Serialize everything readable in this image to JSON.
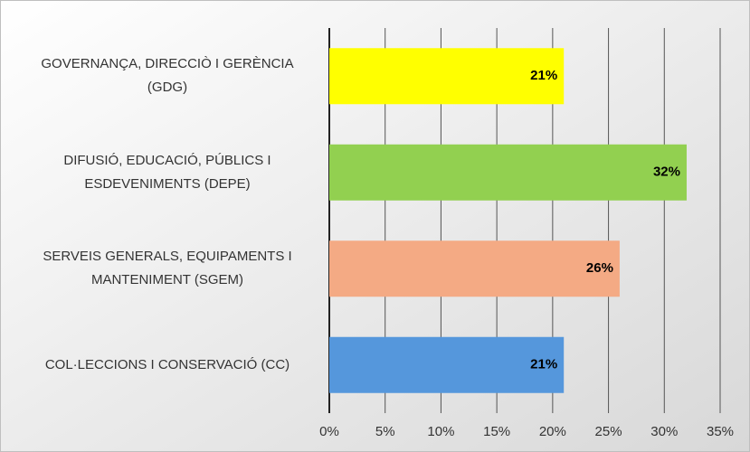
{
  "chart_data": {
    "type": "barh",
    "categories": [
      "GOVERNANÇA, DIRECCIÒ I GERÈNCIA\n(GDG)",
      "DIFUSIÓ, EDUCACIÓ, PÚBLICS I\nESDEVENIMENTS (DEPE)",
      "SERVEIS GENERALS, EQUIPAMENTS I\nMANTENIMENT (SGEM)",
      "COL·LECCIONS I CONSERVACIÓ (CC)"
    ],
    "values": [
      21,
      32,
      26,
      21
    ],
    "value_labels": [
      "21%",
      "32%",
      "26%",
      "21%"
    ],
    "colors": [
      "#ffff00",
      "#92d050",
      "#f4aa84",
      "#5597dc"
    ],
    "xlim": [
      0,
      35
    ],
    "xticks": [
      {
        "value": 0,
        "label": "0%"
      },
      {
        "value": 5,
        "label": "5%"
      },
      {
        "value": 10,
        "label": "10%"
      },
      {
        "value": 15,
        "label": "15%"
      },
      {
        "value": 20,
        "label": "20%"
      },
      {
        "value": 25,
        "label": "25%"
      },
      {
        "value": 30,
        "label": "30%"
      },
      {
        "value": 35,
        "label": "35%"
      }
    ],
    "grid": true
  }
}
